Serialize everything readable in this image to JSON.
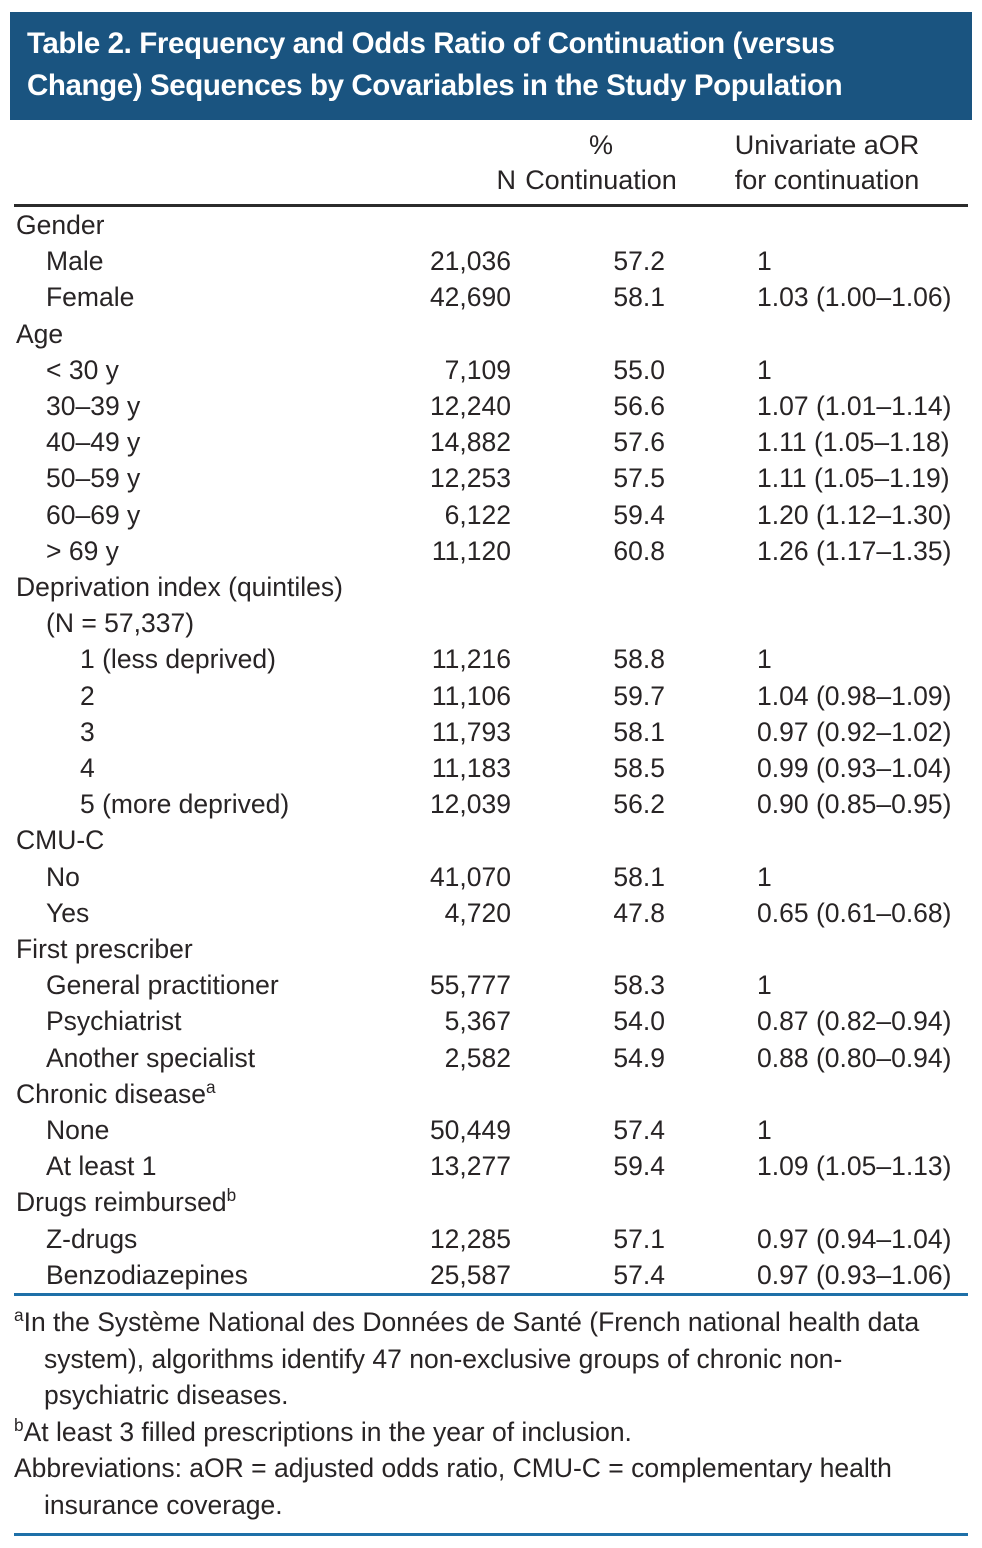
{
  "title": {
    "lines": [
      "Table 2. Frequency and Odds Ratio of Continuation (versus",
      "Change) Sequences by Covariables in the Study Population"
    ]
  },
  "columns": {
    "n": "N",
    "pct_line1": "%",
    "pct_line2": "Continuation",
    "aor_line1": "Univariate aOR",
    "aor_line2": "for continuation"
  },
  "table": {
    "rows": [
      {
        "label": "Gender",
        "indent": 0,
        "sup": "",
        "n": "",
        "pct": "",
        "aor": ""
      },
      {
        "label": "Male",
        "indent": 1,
        "sup": "",
        "n": "21,036",
        "pct": "57.2",
        "aor": "1"
      },
      {
        "label": "Female",
        "indent": 1,
        "sup": "",
        "n": "42,690",
        "pct": "58.1",
        "aor": "1.03 (1.00–1.06)"
      },
      {
        "label": "Age",
        "indent": 0,
        "sup": "",
        "n": "",
        "pct": "",
        "aor": ""
      },
      {
        "label": "< 30 y",
        "indent": 1,
        "sup": "",
        "n": "7,109",
        "pct": "55.0",
        "aor": "1"
      },
      {
        "label": "30–39 y",
        "indent": 1,
        "sup": "",
        "n": "12,240",
        "pct": "56.6",
        "aor": "1.07 (1.01–1.14)"
      },
      {
        "label": "40–49 y",
        "indent": 1,
        "sup": "",
        "n": "14,882",
        "pct": "57.6",
        "aor": "1.11 (1.05–1.18)"
      },
      {
        "label": "50–59 y",
        "indent": 1,
        "sup": "",
        "n": "12,253",
        "pct": "57.5",
        "aor": "1.11 (1.05–1.19)"
      },
      {
        "label": "60–69 y",
        "indent": 1,
        "sup": "",
        "n": "6,122",
        "pct": "59.4",
        "aor": "1.20 (1.12–1.30)"
      },
      {
        "label": "> 69 y",
        "indent": 1,
        "sup": "",
        "n": "11,120",
        "pct": "60.8",
        "aor": "1.26 (1.17–1.35)"
      },
      {
        "label": "Deprivation index (quintiles)",
        "indent": 0,
        "sup": "",
        "n": "",
        "pct": "",
        "aor": ""
      },
      {
        "label": "(N = 57,337)",
        "indent": 1,
        "sup": "",
        "n": "",
        "pct": "",
        "aor": ""
      },
      {
        "label": "1 (less deprived)",
        "indent": 2,
        "sup": "",
        "n": "11,216",
        "pct": "58.8",
        "aor": "1"
      },
      {
        "label": "2",
        "indent": 2,
        "sup": "",
        "n": "11,106",
        "pct": "59.7",
        "aor": "1.04 (0.98–1.09)"
      },
      {
        "label": "3",
        "indent": 2,
        "sup": "",
        "n": "11,793",
        "pct": "58.1",
        "aor": "0.97 (0.92–1.02)"
      },
      {
        "label": "4",
        "indent": 2,
        "sup": "",
        "n": "11,183",
        "pct": "58.5",
        "aor": "0.99 (0.93–1.04)"
      },
      {
        "label": "5 (more deprived)",
        "indent": 2,
        "sup": "",
        "n": "12,039",
        "pct": "56.2",
        "aor": "0.90 (0.85–0.95)"
      },
      {
        "label": "CMU-C",
        "indent": 0,
        "sup": "",
        "n": "",
        "pct": "",
        "aor": ""
      },
      {
        "label": "No",
        "indent": 1,
        "sup": "",
        "n": "41,070",
        "pct": "58.1",
        "aor": "1"
      },
      {
        "label": "Yes",
        "indent": 1,
        "sup": "",
        "n": "4,720",
        "pct": "47.8",
        "aor": "0.65 (0.61–0.68)"
      },
      {
        "label": "First prescriber",
        "indent": 0,
        "sup": "",
        "n": "",
        "pct": "",
        "aor": ""
      },
      {
        "label": "General practitioner",
        "indent": 1,
        "sup": "",
        "n": "55,777",
        "pct": "58.3",
        "aor": "1"
      },
      {
        "label": "Psychiatrist",
        "indent": 1,
        "sup": "",
        "n": "5,367",
        "pct": "54.0",
        "aor": "0.87 (0.82–0.94)"
      },
      {
        "label": "Another specialist",
        "indent": 1,
        "sup": "",
        "n": "2,582",
        "pct": "54.9",
        "aor": "0.88 (0.80–0.94)"
      },
      {
        "label": "Chronic disease",
        "indent": 0,
        "sup": "a",
        "n": "",
        "pct": "",
        "aor": ""
      },
      {
        "label": "None",
        "indent": 1,
        "sup": "",
        "n": "50,449",
        "pct": "57.4",
        "aor": "1"
      },
      {
        "label": "At least 1",
        "indent": 1,
        "sup": "",
        "n": "13,277",
        "pct": "59.4",
        "aor": "1.09 (1.05–1.13)"
      },
      {
        "label": "Drugs reimbursed",
        "indent": 0,
        "sup": "b",
        "n": "",
        "pct": "",
        "aor": ""
      },
      {
        "label": "Z-drugs",
        "indent": 1,
        "sup": "",
        "n": "12,285",
        "pct": "57.1",
        "aor": "0.97 (0.94–1.04)"
      },
      {
        "label": "Benzodiazepines",
        "indent": 1,
        "sup": "",
        "n": "25,587",
        "pct": "57.4",
        "aor": "0.97 (0.93–1.06)"
      }
    ]
  },
  "footnotes": [
    {
      "marker": "a",
      "text": "In the Système National des Données de Santé (French national health data system), algorithms identify 47 non-exclusive groups of chronic non-psychiatric diseases."
    },
    {
      "marker": "b",
      "text": "At least 3 filled prescriptions in the year of inclusion."
    },
    {
      "marker": "",
      "text": "Abbreviations: aOR = adjusted odds ratio, CMU-C = complementary health insurance coverage."
    }
  ],
  "colors": {
    "title_bg": "#1A5480",
    "title_text": "#FFFFFF",
    "rule_dark": "#2B2B2B",
    "rule_blue": "#1E70A8",
    "text": "#282425",
    "page_bg": "#FFFFFF"
  }
}
